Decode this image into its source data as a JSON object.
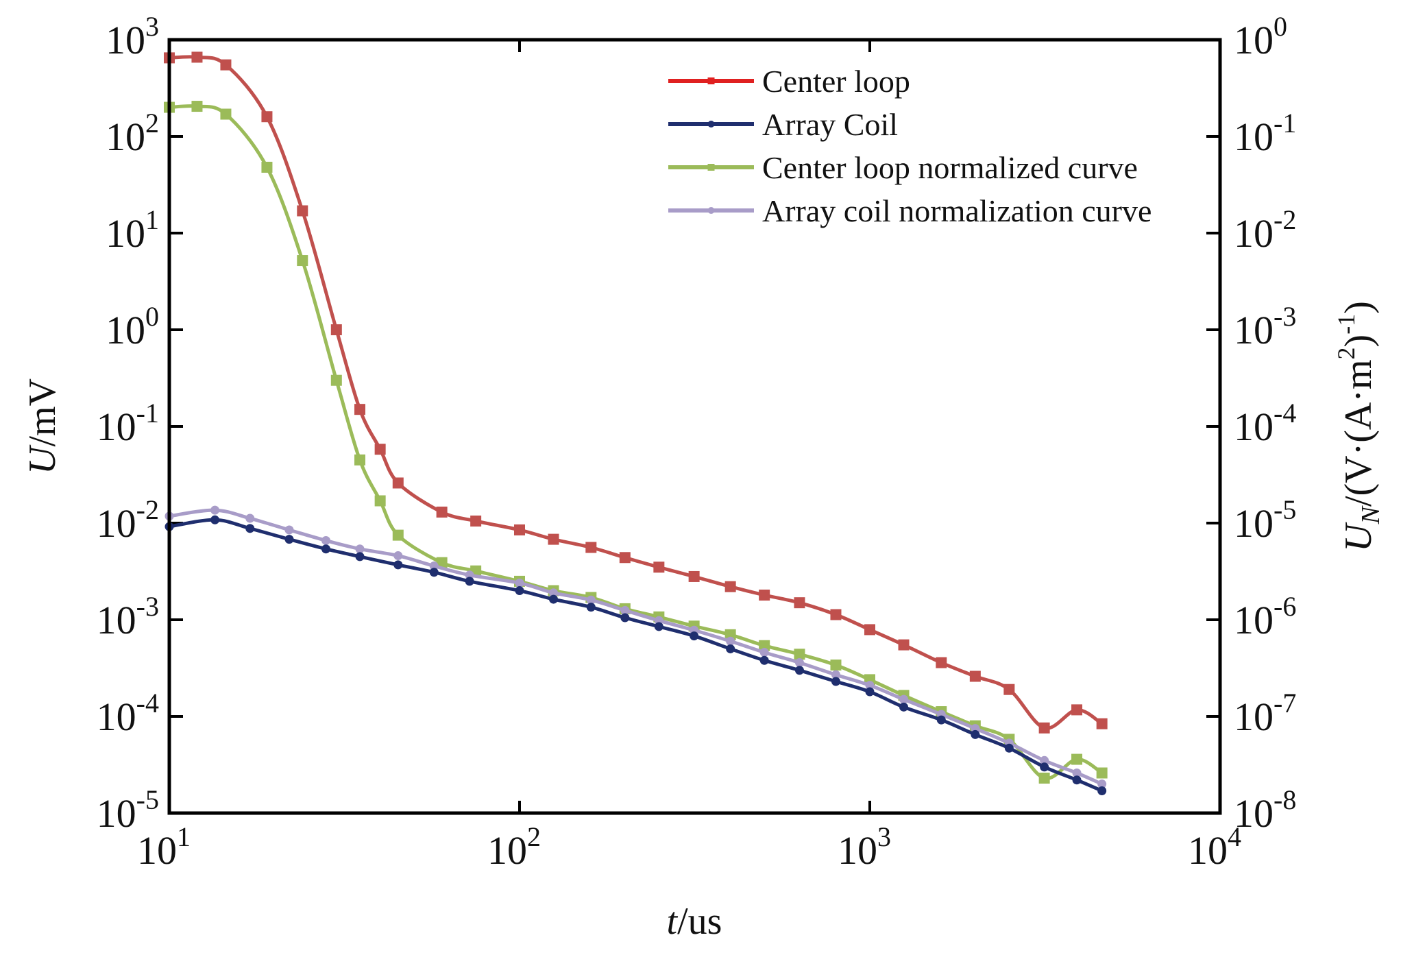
{
  "chart_data": {
    "type": "line",
    "title": "",
    "xlabel_italic": "t",
    "xlabel_unit": "/us",
    "ylabel_italic": "U",
    "ylabel_unit": "/mV",
    "y2label_italic": "U",
    "y2label_sub": "N",
    "y2label_unit_a": "/(V·(A·m",
    "y2label_unit_b": "2",
    "y2label_unit_c": ")",
    "y2label_unit_d": "-1",
    "y2label_unit_e": ")",
    "xscale": "log",
    "yscale": "log",
    "xlim": [
      10,
      10000
    ],
    "ylim": [
      1e-05,
      1000
    ],
    "y2lim": [
      1e-08,
      1
    ],
    "legend_position": "top-right",
    "x_ticks": [
      {
        "base": "10",
        "exp": "1"
      },
      {
        "base": "10",
        "exp": "2"
      },
      {
        "base": "10",
        "exp": "3"
      },
      {
        "base": "10",
        "exp": "4"
      }
    ],
    "y_ticks": [
      {
        "base": "10",
        "exp": "-5"
      },
      {
        "base": "10",
        "exp": "-4"
      },
      {
        "base": "10",
        "exp": "-3"
      },
      {
        "base": "10",
        "exp": "-2"
      },
      {
        "base": "10",
        "exp": "-1"
      },
      {
        "base": "10",
        "exp": "0"
      },
      {
        "base": "10",
        "exp": "1"
      },
      {
        "base": "10",
        "exp": "2"
      },
      {
        "base": "10",
        "exp": "3"
      }
    ],
    "y2_ticks": [
      {
        "base": "10",
        "exp": "-8"
      },
      {
        "base": "10",
        "exp": "-7"
      },
      {
        "base": "10",
        "exp": "-6"
      },
      {
        "base": "10",
        "exp": "-5"
      },
      {
        "base": "10",
        "exp": "-4"
      },
      {
        "base": "10",
        "exp": "-3"
      },
      {
        "base": "10",
        "exp": "-2"
      },
      {
        "base": "10",
        "exp": "-1"
      },
      {
        "base": "10",
        "exp": "0"
      }
    ],
    "series": [
      {
        "name": "Center loop",
        "axis": "left",
        "color": "#c0504d",
        "legend_color": "#e02020",
        "marker": "square",
        "x": [
          10,
          12,
          14.5,
          19,
          24,
          30,
          35,
          40,
          45,
          60,
          75,
          100,
          125,
          160,
          200,
          250,
          315,
          400,
          500,
          630,
          800,
          1000,
          1250,
          1600,
          2000,
          2500,
          3150,
          3900,
          4600
        ],
        "y": [
          650,
          660,
          550,
          160,
          17,
          1.0,
          0.15,
          0.058,
          0.026,
          0.013,
          0.0105,
          0.0085,
          0.0068,
          0.0056,
          0.0044,
          0.0035,
          0.0028,
          0.0022,
          0.0018,
          0.0015,
          0.00113,
          0.00079,
          0.00055,
          0.00036,
          0.00026,
          0.00019,
          7.6e-05,
          0.000117,
          8.4e-05
        ]
      },
      {
        "name": "Array Coil",
        "axis": "left",
        "color": "#1f2e6e",
        "legend_color": "#1f2e6e",
        "marker": "circle",
        "x": [
          10,
          13.5,
          17,
          22,
          28,
          35,
          45,
          57,
          72,
          100,
          125,
          160,
          200,
          250,
          315,
          400,
          500,
          630,
          800,
          1000,
          1250,
          1600,
          2000,
          2500,
          3150,
          3900,
          4600
        ],
        "y": [
          0.0092,
          0.0108,
          0.0088,
          0.0068,
          0.0054,
          0.0045,
          0.0037,
          0.0031,
          0.0025,
          0.002,
          0.00163,
          0.00135,
          0.00105,
          0.00085,
          0.00068,
          0.0005,
          0.00038,
          0.0003,
          0.00023,
          0.00018,
          0.000125,
          9.2e-05,
          6.5e-05,
          4.7e-05,
          3e-05,
          2.2e-05,
          1.7e-05
        ]
      },
      {
        "name": "Center loop normalized curve",
        "axis": "right",
        "color": "#9bbb59",
        "legend_color": "#9bbb59",
        "marker": "square",
        "x": [
          10,
          12,
          14.5,
          19,
          24,
          30,
          35,
          40,
          45,
          60,
          75,
          100,
          125,
          160,
          200,
          250,
          315,
          400,
          500,
          630,
          800,
          1000,
          1250,
          1600,
          2000,
          2500,
          3150,
          3900,
          4600
        ],
        "y": [
          0.2,
          0.205,
          0.17,
          0.048,
          0.0052,
          0.0003,
          4.5e-05,
          1.7e-05,
          7.5e-06,
          3.9e-06,
          3.2e-06,
          2.5e-06,
          2e-06,
          1.7e-06,
          1.3e-06,
          1.07e-06,
          8.6e-07,
          7e-07,
          5.4e-07,
          4.4e-07,
          3.4e-07,
          2.4e-07,
          1.65e-07,
          1.12e-07,
          8e-08,
          5.8e-08,
          2.3e-08,
          3.6e-08,
          2.6e-08
        ]
      },
      {
        "name": "Array coil normalization curve",
        "axis": "right",
        "color": "#a89cc8",
        "legend_color": "#a89cc8",
        "marker": "circle",
        "x": [
          10,
          13.5,
          17,
          22,
          28,
          35,
          45,
          57,
          72,
          100,
          125,
          160,
          200,
          250,
          315,
          400,
          500,
          630,
          800,
          1000,
          1250,
          1600,
          2000,
          2500,
          3150,
          3900,
          4600
        ],
        "y": [
          1.18e-05,
          1.36e-05,
          1.12e-05,
          8.5e-06,
          6.6e-06,
          5.4e-06,
          4.6e-06,
          3.6e-06,
          2.9e-06,
          2.4e-06,
          1.9e-06,
          1.6e-06,
          1.25e-06,
          9.8e-07,
          7.8e-07,
          6e-07,
          4.6e-07,
          3.6e-07,
          2.7e-07,
          2.1e-07,
          1.5e-07,
          1.05e-07,
          7.5e-08,
          5.3e-08,
          3.5e-08,
          2.6e-08,
          2e-08
        ]
      }
    ]
  }
}
